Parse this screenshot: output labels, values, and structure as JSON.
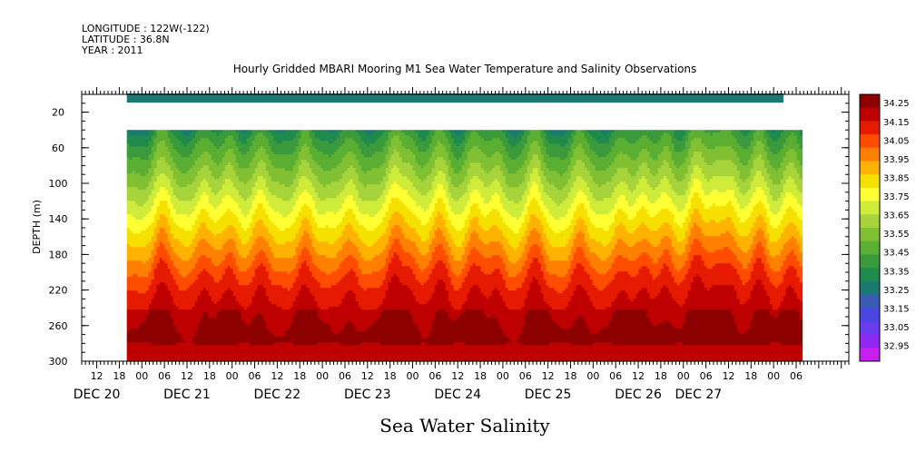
{
  "header": {
    "longitude": "LONGITUDE : 122W(-122)",
    "latitude": "LATITUDE : 36.8N",
    "year": "YEAR : 2011"
  },
  "chart_data": {
    "type": "heatmap",
    "title": "Hourly Gridded MBARI Mooring M1 Sea Water Temperature and Salinity Observations",
    "xlabel": "Sea Water Salinity",
    "ylabel": "DEPTH (m)",
    "x_axis": {
      "unit": "hours",
      "range": [
        0,
        186
      ],
      "hour_labels": [
        "12",
        "18",
        "00",
        "06",
        "12",
        "18",
        "00",
        "06",
        "12",
        "18",
        "00",
        "06",
        "12",
        "18",
        "00",
        "06",
        "12",
        "18",
        "00",
        "06",
        "12",
        "18",
        "00",
        "06",
        "12",
        "18",
        "00",
        "06",
        "12",
        "18",
        "00",
        "06"
      ],
      "hour_label_positions": [
        12,
        18,
        24,
        30,
        36,
        42,
        48,
        54,
        60,
        66,
        72,
        78,
        84,
        90,
        96,
        102,
        108,
        114,
        120,
        126,
        132,
        138,
        144,
        150,
        156,
        162,
        168,
        174,
        180,
        186,
        192,
        198
      ],
      "day_labels": [
        {
          "label": "DEC 20",
          "hour": 12
        },
        {
          "label": "DEC 21",
          "hour": 36
        },
        {
          "label": "DEC 22",
          "hour": 60
        },
        {
          "label": "DEC 23",
          "hour": 84
        },
        {
          "label": "DEC 24",
          "hour": 108
        },
        {
          "label": "DEC 25",
          "hour": 132
        },
        {
          "label": "DEC 26",
          "hour": 156
        },
        {
          "label": "DEC 27",
          "hour": 172
        }
      ],
      "data_start_hour": 20,
      "data_end_hour": 199
    },
    "y_axis": {
      "unit": "m",
      "range": [
        0,
        300
      ],
      "inverted": true,
      "ticks": [
        20,
        60,
        100,
        140,
        180,
        220,
        260,
        300
      ],
      "minor_step": 10
    },
    "depth_levels_shown": [
      10,
      40
    ],
    "data_gap_depth_range": [
      10,
      40
    ],
    "colorbar": {
      "levels": [
        "34.25",
        "34.15",
        "34.05",
        "33.95",
        "33.85",
        "33.75",
        "33.65",
        "33.55",
        "33.45",
        "33.35",
        "33.25",
        "33.15",
        "33.05",
        "32.95"
      ],
      "colors": [
        "#8c0000",
        "#bf0000",
        "#e61a00",
        "#ff4d00",
        "#ff8000",
        "#ffb300",
        "#f5e000",
        "#ffff33",
        "#d0ec3a",
        "#a6d43a",
        "#80c032",
        "#5aae32",
        "#3a9a3c",
        "#1e8a4c",
        "#1a7a70",
        "#3a5ab4",
        "#4848e0",
        "#6a3cf0",
        "#8e28f5",
        "#c81ef0"
      ]
    },
    "surface_band": {
      "depth_range": [
        0,
        10
      ],
      "value": 33.3
    },
    "profile_model": {
      "description": "salinity rises with depth; upwelling pulses lift isohalines",
      "pulse_hours": [
        29,
        40,
        47,
        55,
        67,
        79,
        91,
        95,
        103,
        112,
        118,
        128,
        140,
        151,
        157,
        163,
        171,
        176,
        180,
        188,
        196
      ],
      "pulse_strength": [
        0.9,
        0.7,
        0.6,
        0.8,
        0.9,
        0.7,
        1.0,
        0.6,
        0.9,
        0.8,
        0.6,
        0.9,
        0.8,
        0.7,
        0.6,
        0.8,
        1.0,
        0.7,
        0.8,
        0.9,
        0.7
      ]
    }
  }
}
